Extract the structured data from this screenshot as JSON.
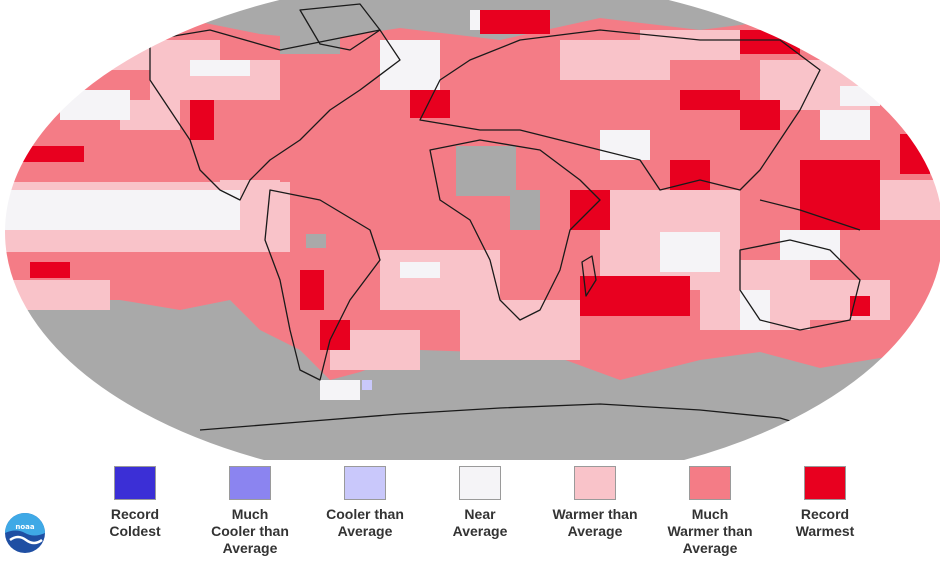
{
  "legend": {
    "items": [
      {
        "label": "Record\nColdest",
        "color": "#3b2fd6"
      },
      {
        "label": "Much\nCooler than\nAverage",
        "color": "#8b84f0"
      },
      {
        "label": "Cooler than\nAverage",
        "color": "#c9c8fb"
      },
      {
        "label": "Near\nAverage",
        "color": "#f5f4f7"
      },
      {
        "label": "Warmer than\nAverage",
        "color": "#f9c3c9"
      },
      {
        "label": "Much\nWarmer than\nAverage",
        "color": "#f47c86"
      },
      {
        "label": "Record\nWarmest",
        "color": "#e8001f"
      }
    ]
  },
  "map": {
    "no_data_color": "#a9a9a9",
    "dominant_color": "#f47c86"
  },
  "logo": {
    "text": "noaa"
  }
}
